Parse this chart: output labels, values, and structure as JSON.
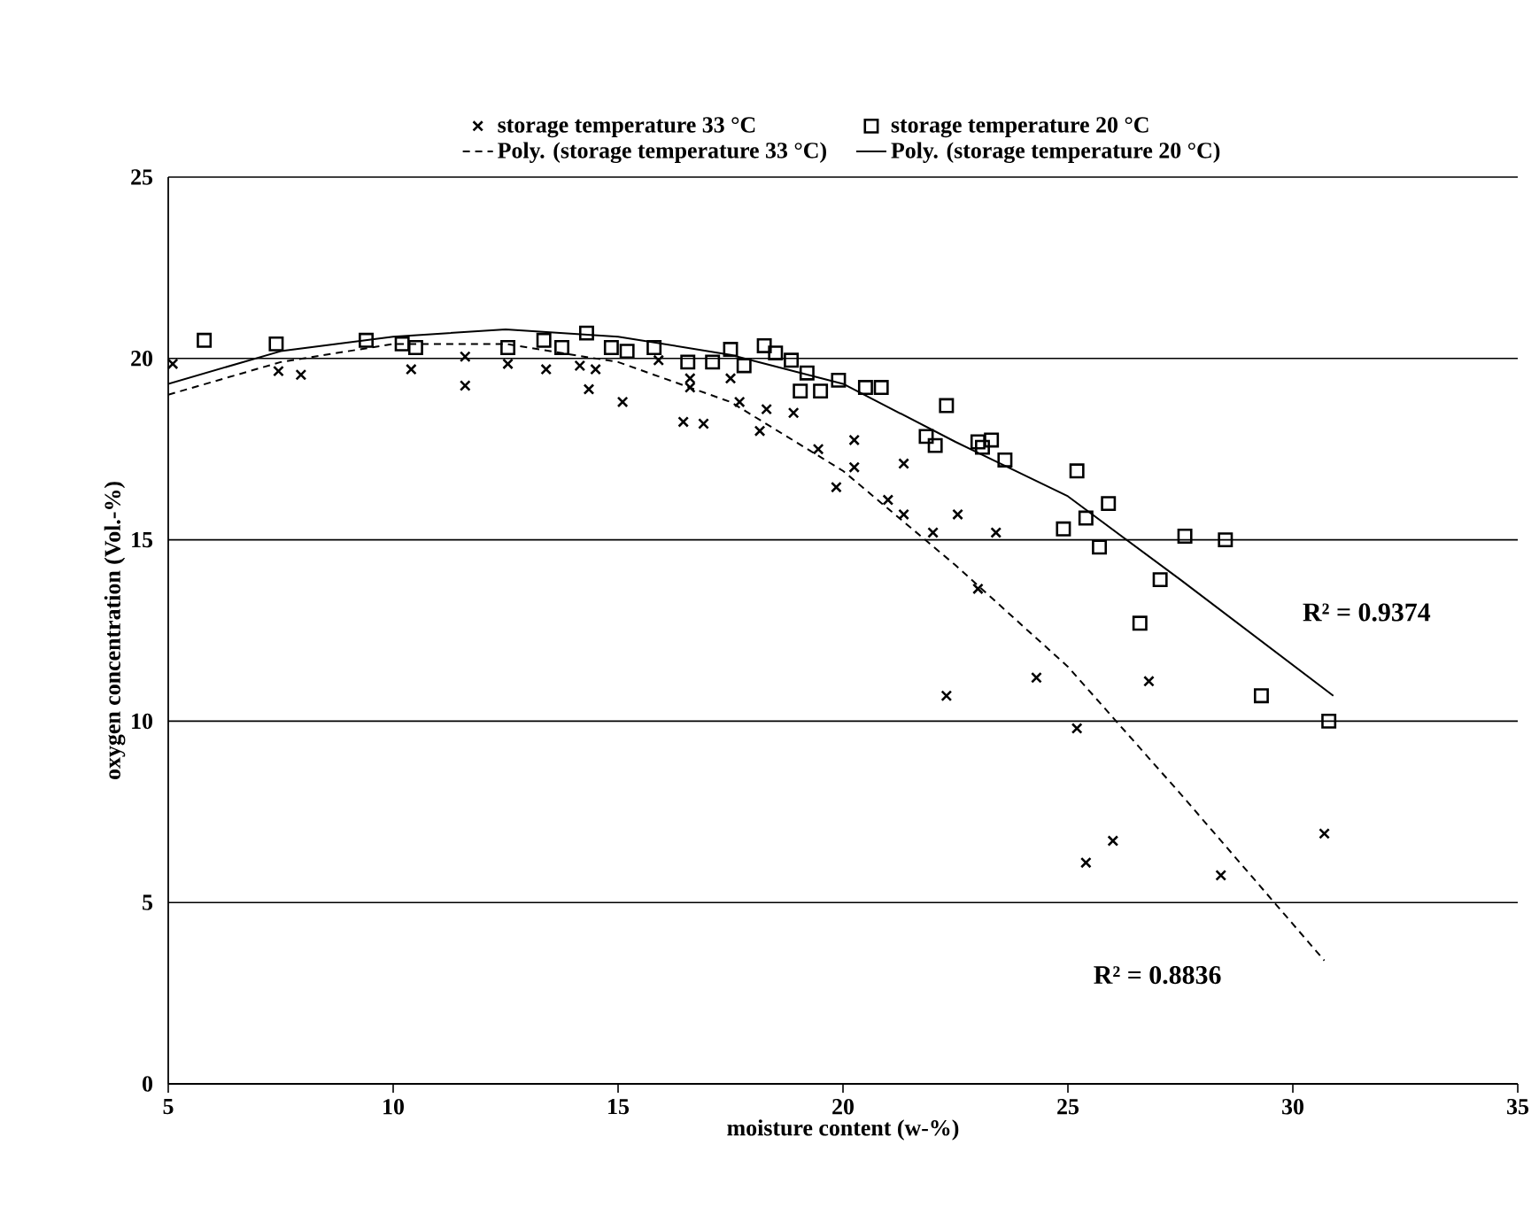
{
  "chart_data": {
    "type": "scatter",
    "xlabel": "moisture content (w-%)",
    "ylabel": "oxygen concentration (Vol.-%)",
    "xlim": [
      5,
      35
    ],
    "ylim": [
      0,
      25
    ],
    "xticks": [
      5,
      10,
      15,
      20,
      25,
      30,
      35
    ],
    "yticks": [
      0,
      5,
      10,
      15,
      20,
      25
    ],
    "grid": "y",
    "legend": "top",
    "series": [
      {
        "name": "storage temperature 33 °C",
        "marker": "cross",
        "color": "#000000",
        "x": [
          5.1,
          7.45,
          7.95,
          10.4,
          11.6,
          11.6,
          12.55,
          13.4,
          14.15,
          14.35,
          14.5,
          15.1,
          15.9,
          16.45,
          16.6,
          16.6,
          16.9,
          17.5,
          17.7,
          18.15,
          18.3,
          18.9,
          19.45,
          19.85,
          20.25,
          20.25,
          21.0,
          21.35,
          21.35,
          22.0,
          22.3,
          22.55,
          23.0,
          23.4,
          24.3,
          25.2,
          25.4,
          26.0,
          26.8,
          28.4,
          30.7
        ],
        "values": [
          19.85,
          19.65,
          19.55,
          19.7,
          20.05,
          19.25,
          19.85,
          19.7,
          19.8,
          19.15,
          19.7,
          18.8,
          19.95,
          18.25,
          19.45,
          19.2,
          18.2,
          19.45,
          18.8,
          18.0,
          18.6,
          18.5,
          17.5,
          16.45,
          17.75,
          17.0,
          16.1,
          17.1,
          15.7,
          15.2,
          10.7,
          15.7,
          13.65,
          15.2,
          11.2,
          9.8,
          6.1,
          6.7,
          11.1,
          5.75,
          6.9
        ]
      },
      {
        "name": "storage temperature 20 °C",
        "marker": "square",
        "color": "#000000",
        "x": [
          5.8,
          7.4,
          9.4,
          10.2,
          10.5,
          12.55,
          13.35,
          13.75,
          14.3,
          14.85,
          15.2,
          15.8,
          16.55,
          17.1,
          17.5,
          17.8,
          18.25,
          18.5,
          18.85,
          19.05,
          19.2,
          19.5,
          19.9,
          20.5,
          20.85,
          21.85,
          22.05,
          22.3,
          23.0,
          23.1,
          23.3,
          23.6,
          24.9,
          25.2,
          25.4,
          25.7,
          25.9,
          26.6,
          27.05,
          27.6,
          28.5,
          29.3,
          30.8
        ],
        "values": [
          20.5,
          20.4,
          20.5,
          20.4,
          20.3,
          20.3,
          20.5,
          20.3,
          20.7,
          20.3,
          20.2,
          20.3,
          19.9,
          19.9,
          20.25,
          19.8,
          20.35,
          20.15,
          19.95,
          19.1,
          19.6,
          19.1,
          19.4,
          19.2,
          19.2,
          17.85,
          17.6,
          18.7,
          17.7,
          17.55,
          17.75,
          17.2,
          15.3,
          16.9,
          15.6,
          14.8,
          16.0,
          12.7,
          13.9,
          15.1,
          15.0,
          10.7,
          10.0
        ]
      },
      {
        "name": "Poly. (storage temperature 33 °C)",
        "type": "line",
        "marker": "none",
        "line_style": "dashed",
        "color": "#000000",
        "x": [
          5,
          7.5,
          10,
          12.5,
          15,
          17.5,
          20,
          22.5,
          25,
          27.5,
          30.7
        ],
        "values": [
          19.0,
          19.9,
          20.4,
          20.4,
          19.9,
          18.8,
          16.9,
          14.3,
          11.5,
          8.0,
          3.4
        ]
      },
      {
        "name": "Poly. (storage temperature 20 °C)",
        "type": "line",
        "marker": "none",
        "line_style": "solid",
        "color": "#000000",
        "x": [
          5,
          7.5,
          10,
          12.5,
          15,
          17.5,
          20,
          22.5,
          25,
          27.5,
          30.9
        ],
        "values": [
          19.3,
          20.2,
          20.6,
          20.8,
          20.6,
          20.1,
          19.3,
          17.7,
          16.2,
          13.9,
          10.7
        ]
      }
    ],
    "annotations": [
      "R² = 0.9374",
      "R² = 0.8836"
    ]
  }
}
